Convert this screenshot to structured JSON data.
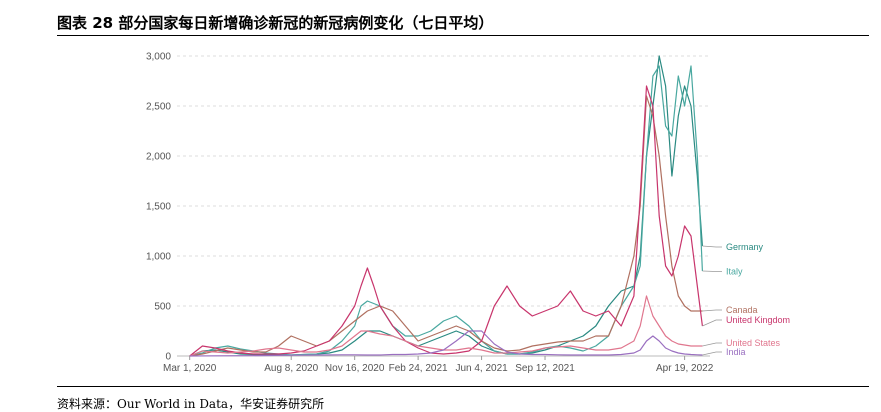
{
  "title": "图表 28 部分国家每日新增确诊新冠的新冠病例变化（七日平均）",
  "source": "资料来源：Our World in Data，华安证券研究所",
  "chart_data": {
    "type": "line",
    "y_ticks": [
      "0",
      "500",
      "1,000",
      "1,500",
      "2,000",
      "2,500",
      "3,000"
    ],
    "ylim": [
      0,
      3000
    ],
    "x_tick_labels": [
      "Mar 1, 2020",
      "Aug 8, 2020",
      "Nov 16, 2020",
      "Feb 24, 2021",
      "Jun 4, 2021",
      "Sep 12, 2021",
      "Apr 19, 2022"
    ],
    "x_tick_days": [
      0,
      160,
      260,
      360,
      460,
      560,
      780
    ],
    "x_range_days": [
      -20,
      820
    ],
    "grid": true,
    "legend_placement": "right (end-of-line labels)",
    "series": [
      {
        "name": "Germany",
        "color": "#2a8a82",
        "label_y": 1090,
        "x": [
          0,
          20,
          40,
          60,
          80,
          120,
          160,
          200,
          220,
          240,
          260,
          270,
          280,
          300,
          320,
          340,
          360,
          380,
          400,
          420,
          440,
          460,
          480,
          500,
          520,
          540,
          560,
          580,
          600,
          620,
          640,
          660,
          680,
          700,
          710,
          720,
          730,
          740,
          750,
          760,
          770,
          780,
          790,
          800,
          808
        ],
        "y": [
          0,
          50,
          60,
          40,
          20,
          10,
          10,
          20,
          30,
          60,
          150,
          200,
          250,
          250,
          200,
          150,
          100,
          150,
          200,
          250,
          200,
          100,
          50,
          20,
          20,
          30,
          60,
          100,
          150,
          200,
          300,
          500,
          650,
          700,
          1000,
          2000,
          2500,
          3000,
          2700,
          1800,
          2400,
          2700,
          2500,
          1800,
          1100
        ]
      },
      {
        "name": "Italy",
        "color": "#49a8a0",
        "label_y": 845,
        "x": [
          0,
          20,
          40,
          60,
          80,
          120,
          160,
          200,
          220,
          240,
          260,
          270,
          280,
          300,
          320,
          340,
          360,
          380,
          400,
          420,
          440,
          460,
          480,
          500,
          520,
          540,
          560,
          580,
          600,
          620,
          640,
          660,
          680,
          700,
          710,
          720,
          730,
          740,
          750,
          760,
          770,
          780,
          790,
          800,
          808
        ],
        "y": [
          0,
          30,
          80,
          100,
          70,
          30,
          10,
          20,
          50,
          150,
          300,
          500,
          550,
          500,
          300,
          200,
          200,
          250,
          350,
          400,
          300,
          150,
          50,
          20,
          20,
          40,
          80,
          100,
          80,
          50,
          100,
          200,
          500,
          700,
          900,
          2000,
          2800,
          2900,
          2300,
          2200,
          2800,
          2500,
          2900,
          2000,
          850
        ]
      },
      {
        "name": "Canada",
        "color": "#b07060",
        "label_y": 460,
        "x": [
          0,
          20,
          40,
          60,
          80,
          100,
          120,
          140,
          160,
          180,
          200,
          220,
          240,
          260,
          270,
          280,
          300,
          320,
          340,
          360,
          380,
          400,
          420,
          440,
          460,
          480,
          500,
          520,
          540,
          560,
          580,
          600,
          620,
          640,
          660,
          680,
          700,
          710,
          720,
          730,
          740,
          750,
          760,
          770,
          780,
          790,
          800,
          808
        ],
        "y": [
          0,
          20,
          50,
          80,
          60,
          40,
          40,
          100,
          200,
          150,
          100,
          150,
          250,
          350,
          400,
          450,
          500,
          450,
          300,
          150,
          200,
          250,
          300,
          250,
          150,
          80,
          50,
          60,
          100,
          120,
          140,
          150,
          150,
          200,
          200,
          500,
          1000,
          1500,
          2600,
          2400,
          2000,
          1400,
          900,
          600,
          500,
          450,
          450,
          450
        ]
      },
      {
        "name": "United Kingdom",
        "color": "#c8356c",
        "label_y": 360,
        "x": [
          0,
          20,
          40,
          60,
          80,
          100,
          120,
          140,
          160,
          180,
          200,
          220,
          240,
          260,
          270,
          280,
          290,
          300,
          320,
          340,
          360,
          380,
          400,
          420,
          440,
          460,
          480,
          500,
          520,
          540,
          560,
          580,
          600,
          620,
          640,
          660,
          680,
          700,
          710,
          720,
          730,
          740,
          750,
          760,
          770,
          780,
          790,
          800,
          808
        ],
        "y": [
          0,
          100,
          80,
          50,
          30,
          20,
          20,
          20,
          30,
          50,
          100,
          150,
          300,
          500,
          700,
          880,
          700,
          500,
          300,
          150,
          80,
          30,
          20,
          30,
          50,
          150,
          500,
          700,
          500,
          400,
          450,
          500,
          650,
          450,
          400,
          450,
          300,
          600,
          1600,
          2700,
          2500,
          1400,
          900,
          800,
          1000,
          1300,
          1200,
          700,
          300
        ]
      },
      {
        "name": "United States",
        "color": "#e0768e",
        "label_y": 130,
        "x": [
          0,
          20,
          40,
          60,
          80,
          100,
          120,
          140,
          160,
          180,
          200,
          220,
          240,
          260,
          270,
          280,
          300,
          320,
          340,
          360,
          380,
          400,
          420,
          440,
          460,
          480,
          500,
          520,
          540,
          560,
          580,
          600,
          620,
          640,
          660,
          680,
          700,
          710,
          720,
          730,
          740,
          750,
          760,
          770,
          780,
          790,
          800,
          808
        ],
        "y": [
          0,
          50,
          40,
          30,
          40,
          50,
          70,
          80,
          60,
          40,
          40,
          60,
          100,
          200,
          250,
          250,
          220,
          200,
          150,
          100,
          80,
          60,
          60,
          80,
          60,
          30,
          30,
          40,
          50,
          80,
          90,
          100,
          80,
          60,
          60,
          80,
          150,
          300,
          600,
          400,
          300,
          200,
          150,
          120,
          110,
          100,
          100,
          100
        ]
      },
      {
        "name": "India",
        "color": "#9a6fc0",
        "label_y": 40,
        "x": [
          0,
          40,
          80,
          120,
          160,
          200,
          240,
          260,
          280,
          300,
          320,
          340,
          360,
          380,
          400,
          420,
          440,
          460,
          480,
          500,
          520,
          540,
          560,
          580,
          600,
          620,
          640,
          660,
          680,
          700,
          710,
          720,
          730,
          740,
          750,
          760,
          770,
          780,
          790,
          800,
          808
        ],
        "y": [
          0,
          2,
          3,
          5,
          8,
          10,
          12,
          12,
          10,
          10,
          15,
          15,
          20,
          30,
          60,
          150,
          250,
          250,
          120,
          40,
          20,
          15,
          15,
          12,
          10,
          10,
          10,
          10,
          15,
          30,
          60,
          150,
          200,
          150,
          80,
          50,
          30,
          20,
          15,
          12,
          10
        ]
      }
    ]
  }
}
